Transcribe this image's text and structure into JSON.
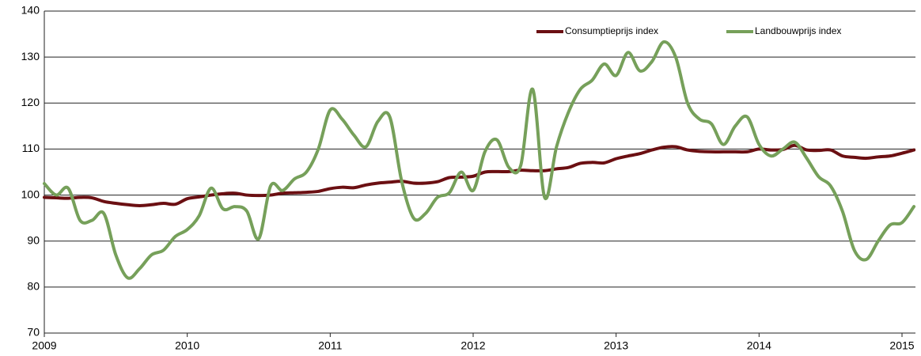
{
  "chart_data": {
    "type": "line",
    "categories": [
      "2009",
      null,
      null,
      null,
      null,
      null,
      null,
      null,
      null,
      null,
      null,
      null,
      "2010",
      null,
      null,
      null,
      null,
      null,
      null,
      null,
      null,
      null,
      null,
      null,
      "2011",
      null,
      null,
      null,
      null,
      null,
      null,
      null,
      null,
      null,
      null,
      null,
      "2012",
      null,
      null,
      null,
      null,
      null,
      null,
      null,
      null,
      null,
      null,
      null,
      "2013",
      null,
      null,
      null,
      null,
      null,
      null,
      null,
      null,
      null,
      null,
      null,
      "2014",
      null,
      null,
      null,
      null,
      null,
      null,
      null,
      null,
      null,
      null,
      null,
      "2015",
      null
    ],
    "series": [
      {
        "name": "Consumptieprijs index",
        "color": "#6b0f12",
        "values": [
          99.5,
          99.4,
          99.3,
          99.5,
          99.4,
          98.6,
          98.2,
          97.9,
          97.7,
          97.9,
          98.2,
          98.0,
          99.2,
          99.6,
          100.0,
          100.3,
          100.4,
          100.0,
          99.9,
          100.0,
          100.4,
          100.5,
          100.6,
          100.8,
          101.4,
          101.7,
          101.6,
          102.2,
          102.6,
          102.8,
          103.0,
          102.6,
          102.6,
          102.9,
          103.8,
          103.9,
          104.1,
          105.0,
          105.1,
          105.1,
          105.4,
          105.3,
          105.3,
          105.7,
          106.0,
          106.9,
          107.1,
          107.0,
          107.9,
          108.5,
          109.0,
          109.8,
          110.4,
          110.5,
          109.8,
          109.5,
          109.4,
          109.4,
          109.4,
          109.4,
          110.0,
          109.8,
          109.9,
          110.8,
          109.8,
          109.7,
          109.8,
          108.5,
          108.2,
          108.0,
          108.3,
          108.5,
          109.1,
          109.8
        ]
      },
      {
        "name": "Landbouwprijs index",
        "color": "#76a05a",
        "values": [
          102.5,
          100,
          101.5,
          94.5,
          94.5,
          96,
          87,
          82,
          84,
          87,
          88,
          91,
          92.5,
          95.5,
          101.5,
          97,
          97.5,
          96.5,
          90.5,
          102,
          101,
          103.5,
          105,
          110,
          118.5,
          116.5,
          113,
          110.5,
          116,
          117,
          103,
          95,
          96,
          99.5,
          100.5,
          105,
          101,
          109.5,
          112,
          106,
          106.5,
          123,
          99.5,
          110.5,
          118,
          123,
          125,
          128.5,
          126,
          131,
          127,
          129,
          133.3,
          130,
          120,
          116.5,
          115.5,
          111,
          115,
          117,
          111,
          108.5,
          110,
          111.5,
          108,
          104,
          102,
          96.5,
          88,
          86,
          90,
          93.5,
          94,
          97.5
        ]
      }
    ],
    "ylim": [
      70,
      140
    ],
    "yticks": [
      70,
      80,
      90,
      100,
      110,
      120,
      130,
      140
    ],
    "grid": true,
    "legend": "top-right"
  }
}
